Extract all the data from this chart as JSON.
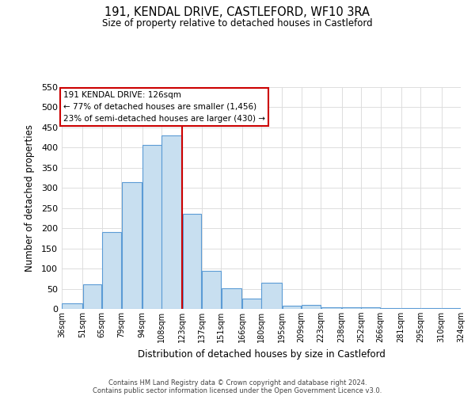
{
  "title": "191, KENDAL DRIVE, CASTLEFORD, WF10 3RA",
  "subtitle": "Size of property relative to detached houses in Castleford",
  "xlabel": "Distribution of detached houses by size in Castleford",
  "ylabel": "Number of detached properties",
  "bar_left_edges": [
    36,
    51,
    65,
    79,
    94,
    108,
    123,
    137,
    151,
    166,
    180,
    195,
    209,
    223,
    238,
    252,
    266,
    281,
    295,
    310
  ],
  "bar_widths": [
    15,
    14,
    14,
    15,
    14,
    15,
    14,
    14,
    15,
    14,
    15,
    14,
    14,
    15,
    14,
    14,
    15,
    14,
    15,
    14
  ],
  "bar_heights": [
    13,
    60,
    190,
    315,
    407,
    430,
    235,
    95,
    52,
    25,
    65,
    8,
    10,
    3,
    3,
    3,
    2,
    2,
    2,
    2
  ],
  "tick_labels": [
    "36sqm",
    "51sqm",
    "65sqm",
    "79sqm",
    "94sqm",
    "108sqm",
    "123sqm",
    "137sqm",
    "151sqm",
    "166sqm",
    "180sqm",
    "195sqm",
    "209sqm",
    "223sqm",
    "238sqm",
    "252sqm",
    "266sqm",
    "281sqm",
    "295sqm",
    "310sqm",
    "324sqm"
  ],
  "tick_positions": [
    36,
    51,
    65,
    79,
    94,
    108,
    123,
    137,
    151,
    166,
    180,
    195,
    209,
    223,
    238,
    252,
    266,
    281,
    295,
    310,
    324
  ],
  "bar_color": "#c8dff0",
  "bar_edge_color": "#5b9bd5",
  "ylim": [
    0,
    550
  ],
  "yticks": [
    0,
    50,
    100,
    150,
    200,
    250,
    300,
    350,
    400,
    450,
    500,
    550
  ],
  "property_line_x": 123,
  "property_label": "191 KENDAL DRIVE: 126sqm",
  "annotation_line1": "← 77% of detached houses are smaller (1,456)",
  "annotation_line2": "23% of semi-detached houses are larger (430) →",
  "box_color": "#ffffff",
  "box_edge_color": "#cc0000",
  "line_color": "#cc0000",
  "footer1": "Contains HM Land Registry data © Crown copyright and database right 2024.",
  "footer2": "Contains public sector information licensed under the Open Government Licence v3.0.",
  "background_color": "#ffffff",
  "grid_color": "#dddddd"
}
